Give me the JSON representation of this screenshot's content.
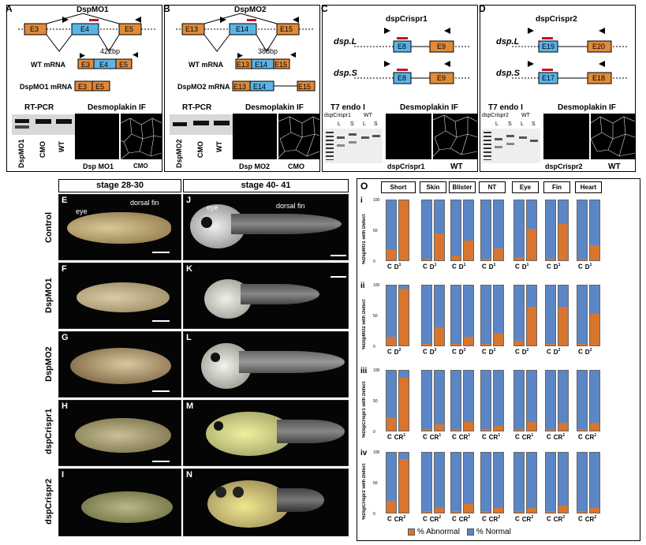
{
  "panels": {
    "A": {
      "label": "A",
      "title": "DspMO1",
      "exons": [
        "E3",
        "E4",
        "E5"
      ],
      "wt_label": "WT mRNA",
      "mo_label": "DspMO1 mRNA",
      "bp": "422bp",
      "rtpcr": "RT-PCR",
      "if_title": "Desmoplakin IF",
      "lanes": [
        "DspMO1",
        "CMO",
        "WT"
      ],
      "if_labels": [
        "Dsp MO1",
        "CMO"
      ]
    },
    "B": {
      "label": "B",
      "title": "DspMO2",
      "exons": [
        "E13",
        "E14",
        "E15"
      ],
      "wt_label": "WT mRNA",
      "mo_label": "DspMO2 mRNA",
      "bp": "388bp",
      "rtpcr": "RT-PCR",
      "if_title": "Desmoplakin IF",
      "lanes": [
        "DspMO2",
        "CMO",
        "WT"
      ],
      "if_labels": [
        "Dsp MO2",
        "CMO"
      ]
    },
    "C": {
      "label": "C",
      "title": "dspCrispr1",
      "genes": [
        "dsp.L",
        "dsp.S"
      ],
      "exons": [
        "E8",
        "E9"
      ],
      "t7": "T7 endo I",
      "if_title": "Desmoplakin IF",
      "gel_title": "dspCrispr1",
      "gel_wt": "WT",
      "lanes": [
        "L",
        "S",
        "L",
        "S"
      ],
      "if_labels": [
        "dspCrispr1",
        "WT"
      ]
    },
    "D": {
      "label": "D",
      "title": "dspCrispr2",
      "genes": [
        "dsp.L",
        "dsp.S"
      ],
      "exons_L": [
        "E19",
        "E20"
      ],
      "exons_S": [
        "E17",
        "E18"
      ],
      "t7": "T7 endo I",
      "if_title": "Desmoplakin IF",
      "gel_title": "dspCrispr2",
      "gel_wt": "WT",
      "lanes": [
        "L",
        "S",
        "L",
        "S"
      ],
      "if_labels": [
        "dspCrispr2",
        "WT"
      ]
    }
  },
  "embryos": {
    "stage_headers": [
      "stage 28-30",
      "stage 40- 41"
    ],
    "rows": [
      "Control",
      "DspMO1",
      "DspMO2",
      "dspCrispr1",
      "dspCrispr2"
    ],
    "left_labels": [
      "E",
      "F",
      "G",
      "H",
      "I"
    ],
    "right_labels": [
      "J",
      "K",
      "L",
      "M",
      "N"
    ],
    "annotations": {
      "eye": "eye",
      "dorsal_fin": "dorsal fin"
    }
  },
  "panel_O": {
    "label": "O",
    "columns": [
      "Short",
      "Skin",
      "Blister",
      "NT",
      "Eye",
      "Fin",
      "Heart"
    ],
    "rows": [
      {
        "roman": "i",
        "ylabel": "%DspMO1 with Defect",
        "xlab": [
          "C",
          "D",
          "1"
        ]
      },
      {
        "roman": "ii",
        "ylabel": "%DspMO2 with Defect",
        "xlab": [
          "C",
          "D",
          "2"
        ]
      },
      {
        "roman": "iii",
        "ylabel": "%DspCrispr1 with Defect",
        "xlab": [
          "C",
          "CR",
          "1"
        ]
      },
      {
        "roman": "iv",
        "ylabel": "%DspCrispr2 with Defect",
        "xlab": [
          "C",
          "CR",
          "2"
        ]
      }
    ],
    "yticks": [
      "100",
      "50",
      "0"
    ],
    "legend": {
      "abnormal": "% Abnormal",
      "normal": "% Normal"
    },
    "colors": {
      "abnormal": "#d9752f",
      "normal": "#5b86c6"
    }
  },
  "chart_data": {
    "type": "bar",
    "stacked": true,
    "categories": [
      "Short",
      "Skin",
      "Blister",
      "NT",
      "Eye",
      "Fin",
      "Heart"
    ],
    "ylim": [
      0,
      100
    ],
    "series": [
      {
        "name": "% Abnormal",
        "values": {
          "i": [
            [
              18,
              100
            ],
            [
              2,
              45
            ],
            [
              8,
              33
            ],
            [
              2,
              20
            ],
            [
              5,
              52
            ],
            [
              3,
              60
            ],
            [
              2,
              25
            ]
          ],
          "ii": [
            [
              15,
              95
            ],
            [
              2,
              30
            ],
            [
              3,
              15
            ],
            [
              2,
              20
            ],
            [
              8,
              65
            ],
            [
              3,
              65
            ],
            [
              3,
              52
            ]
          ],
          "iii": [
            [
              22,
              88
            ],
            [
              2,
              10
            ],
            [
              2,
              14
            ],
            [
              2,
              8
            ],
            [
              2,
              15
            ],
            [
              2,
              13
            ],
            [
              2,
              13
            ]
          ],
          "iv": [
            [
              20,
              90
            ],
            [
              2,
              8
            ],
            [
              2,
              15
            ],
            [
              2,
              8
            ],
            [
              2,
              8
            ],
            [
              2,
              12
            ],
            [
              2,
              8
            ]
          ]
        }
      }
    ]
  }
}
